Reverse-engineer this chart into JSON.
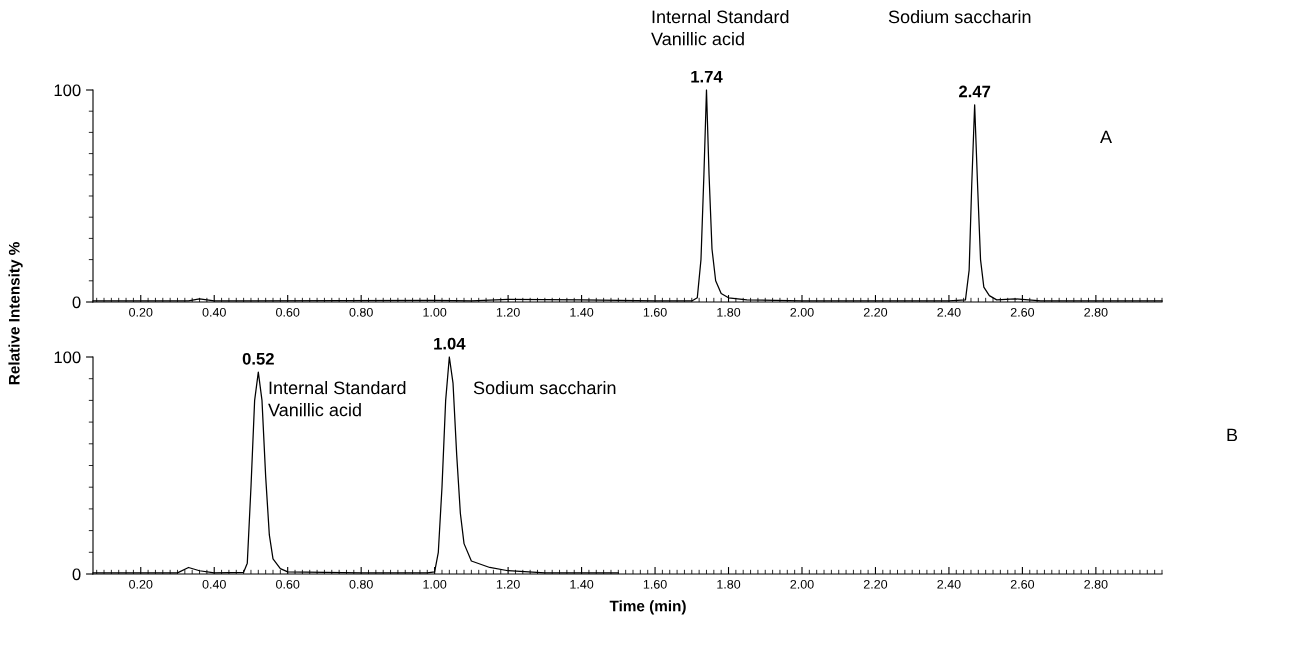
{
  "chart_data": [
    {
      "type": "line",
      "ylim": [
        0,
        100
      ],
      "yticks": [
        0,
        100
      ],
      "xlim": [
        0.07,
        2.98
      ],
      "xticks": [
        {
          "value": 0.2,
          "label": "0.20"
        },
        {
          "value": 0.4,
          "label": "0.40"
        },
        {
          "value": 0.6,
          "label": "0.60"
        },
        {
          "value": 0.8,
          "label": "0.80"
        },
        {
          "value": 1.0,
          "label": "1.00"
        },
        {
          "value": 1.2,
          "label": "1.20"
        },
        {
          "value": 1.4,
          "label": "1.40"
        },
        {
          "value": 1.6,
          "label": "1.60"
        },
        {
          "value": 1.8,
          "label": "1.80"
        },
        {
          "value": 2.0,
          "label": "2.00"
        },
        {
          "value": 2.2,
          "label": "2.20"
        },
        {
          "value": 2.4,
          "label": "2.40"
        },
        {
          "value": 2.6,
          "label": "2.60"
        },
        {
          "value": 2.8,
          "label": "2.80"
        }
      ],
      "grid": false,
      "legend": false,
      "marker": "none",
      "line_style": "solid",
      "series": [
        {
          "color": "#000000",
          "x": [
            0.07,
            0.33,
            0.36,
            0.4,
            1.0,
            1.1,
            1.2,
            1.4,
            1.6,
            1.7,
            1.715,
            1.725,
            1.733,
            1.74,
            1.747,
            1.755,
            1.765,
            1.78,
            1.8,
            1.85,
            2.0,
            2.4,
            2.445,
            2.455,
            2.462,
            2.47,
            2.478,
            2.486,
            2.495,
            2.51,
            2.53,
            2.58,
            2.65,
            2.98
          ],
          "values": [
            0.5,
            0.5,
            1.5,
            0.5,
            0.8,
            0.5,
            1.2,
            1,
            0.5,
            0.5,
            2,
            20,
            60,
            100,
            60,
            25,
            10,
            4,
            2,
            1,
            0.5,
            0.5,
            1,
            15,
            55,
            93,
            55,
            20,
            7,
            3,
            1,
            1.5,
            0.5,
            0.5
          ]
        }
      ],
      "annotations": [
        {
          "text": "1.74",
          "x": 1.74,
          "y": 100
        },
        "Internal Standard\nVanillic acid",
        {
          "text": "2.47",
          "x": 2.47,
          "y": 93
        },
        "Sodium saccharin",
        "A"
      ]
    },
    {
      "type": "line",
      "ylim": [
        0,
        100
      ],
      "yticks": [
        0,
        100
      ],
      "xlim": [
        0.07,
        2.98
      ],
      "xticks": [
        {
          "value": 0.2,
          "label": "0.20"
        },
        {
          "value": 0.4,
          "label": "0.40"
        },
        {
          "value": 0.6,
          "label": "0.60"
        },
        {
          "value": 0.8,
          "label": "0.80"
        },
        {
          "value": 1.0,
          "label": "1.00"
        },
        {
          "value": 1.2,
          "label": "1.20"
        },
        {
          "value": 1.4,
          "label": "1.40"
        },
        {
          "value": 1.6,
          "label": "1.60"
        },
        {
          "value": 1.8,
          "label": "1.80"
        },
        {
          "value": 2.0,
          "label": "2.00"
        },
        {
          "value": 2.2,
          "label": "2.20"
        },
        {
          "value": 2.4,
          "label": "2.40"
        },
        {
          "value": 2.6,
          "label": "2.60"
        },
        {
          "value": 2.8,
          "label": "2.80"
        }
      ],
      "grid": false,
      "legend": false,
      "marker": "none",
      "line_style": "solid",
      "xlabel": "Time (min)",
      "ylabel": "Relative Intensity %",
      "series": [
        {
          "color": "#000000",
          "x": [
            0.07,
            0.3,
            0.33,
            0.36,
            0.4,
            0.48,
            0.49,
            0.5,
            0.51,
            0.52,
            0.53,
            0.54,
            0.55,
            0.56,
            0.58,
            0.6,
            0.8,
            0.98,
            1.0,
            1.01,
            1.02,
            1.03,
            1.04,
            1.05,
            1.06,
            1.07,
            1.08,
            1.1,
            1.15,
            1.2,
            1.3,
            1.5
          ],
          "values": [
            0.5,
            0.5,
            3,
            1.5,
            0.5,
            0.8,
            5,
            40,
            80,
            93,
            80,
            45,
            18,
            7,
            2.5,
            1,
            0.5,
            0.5,
            1,
            10,
            40,
            80,
            100,
            88,
            55,
            28,
            14,
            6,
            3,
            1.5,
            0.5,
            0.5
          ]
        }
      ],
      "annotations": [
        {
          "text": "0.52",
          "x": 0.52,
          "y": 93
        },
        "Internal Standard\nVanillic acid",
        {
          "text": "1.04",
          "x": 1.04,
          "y": 100
        },
        "Sodium saccharin",
        "B"
      ]
    }
  ]
}
